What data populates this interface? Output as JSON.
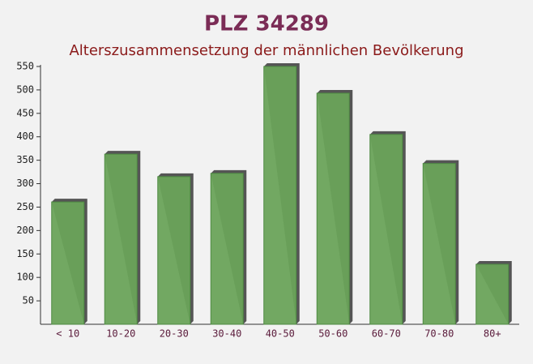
{
  "chart_data": {
    "type": "bar",
    "title": "PLZ 34289",
    "subtitle": "Alterszusammensetzung der männlichen Bevölkerung",
    "categories": [
      "< 10",
      "10-20",
      "20-30",
      "30-40",
      "40-50",
      "50-60",
      "60-70",
      "70-80",
      "80+"
    ],
    "values": [
      261,
      363,
      315,
      322,
      550,
      493,
      405,
      343,
      128
    ],
    "color": "#6aa35a",
    "ylim": [
      0,
      550
    ],
    "yticks": [
      50,
      100,
      150,
      200,
      250,
      300,
      350,
      400,
      450,
      500,
      550
    ]
  }
}
